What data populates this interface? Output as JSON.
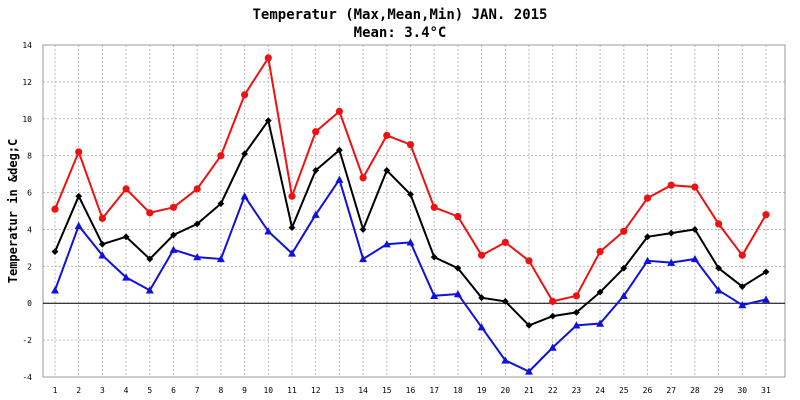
{
  "chart_data": {
    "type": "line",
    "title": "Temperatur (Max,Mean,Min) JAN. 2015",
    "subtitle": "Mean: 3.4°C",
    "ylabel": "Temperatur in &deg;C",
    "xlabel": "",
    "ylim": [
      -4,
      14
    ],
    "yticks": [
      -4,
      -2,
      0,
      2,
      4,
      6,
      8,
      10,
      12,
      14
    ],
    "categories": [
      "1",
      "2",
      "3",
      "4",
      "5",
      "6",
      "7",
      "8",
      "9",
      "10",
      "11",
      "12",
      "13",
      "14",
      "15",
      "16",
      "17",
      "18",
      "19",
      "20",
      "21",
      "22",
      "23",
      "24",
      "25",
      "26",
      "27",
      "28",
      "29",
      "30",
      "31"
    ],
    "grid": true,
    "series": [
      {
        "key": "max",
        "color": "#ee1111",
        "marker": "circle",
        "values": [
          5.1,
          8.2,
          4.6,
          6.2,
          4.9,
          5.2,
          6.2,
          8.0,
          11.3,
          13.3,
          5.8,
          9.3,
          10.4,
          6.8,
          9.1,
          8.6,
          5.2,
          4.7,
          2.6,
          3.3,
          2.3,
          0.1,
          0.4,
          2.8,
          3.9,
          5.7,
          6.4,
          6.3,
          4.3,
          2.6,
          4.8
        ]
      },
      {
        "key": "mean",
        "color": "#000000",
        "marker": "diamond",
        "values": [
          2.8,
          5.8,
          3.2,
          3.6,
          2.4,
          3.7,
          4.3,
          5.4,
          8.1,
          9.9,
          4.1,
          7.2,
          8.3,
          4.0,
          7.2,
          5.9,
          2.5,
          1.9,
          0.3,
          0.1,
          -1.2,
          -0.7,
          -0.5,
          0.6,
          1.9,
          3.6,
          3.8,
          4.0,
          1.9,
          0.9,
          1.7
        ]
      },
      {
        "key": "min",
        "color": "#1111dd",
        "marker": "triangle",
        "values": [
          0.7,
          4.2,
          2.6,
          1.4,
          0.7,
          2.9,
          2.5,
          2.4,
          5.8,
          3.9,
          2.7,
          4.8,
          6.7,
          2.4,
          3.2,
          3.3,
          0.4,
          0.5,
          -1.3,
          -3.1,
          -3.7,
          -2.4,
          -1.2,
          -1.1,
          0.4,
          2.3,
          2.2,
          2.4,
          0.7,
          -0.1,
          0.2
        ]
      }
    ]
  }
}
